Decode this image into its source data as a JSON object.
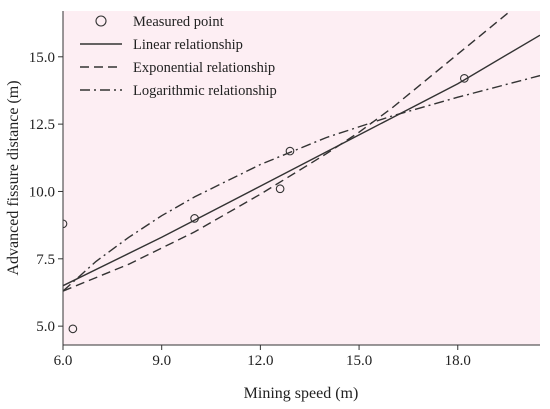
{
  "chart_data": {
    "type": "line",
    "xlabel": "Mining speed (m)",
    "ylabel": "Advanced fissure distance (m)",
    "xlim": [
      6.0,
      20.5
    ],
    "ylim": [
      4.3,
      16.7
    ],
    "xticks": [
      "6.0",
      "9.0",
      "12.0",
      "15.0",
      "18.0"
    ],
    "xtick_values": [
      6,
      9,
      12,
      15,
      18
    ],
    "yticks": [
      "5.0",
      "7.5",
      "10.0",
      "12.5",
      "15.0"
    ],
    "ytick_values": [
      5,
      7.5,
      10,
      12.5,
      15
    ],
    "grid": false,
    "legend_position": "top-left",
    "background": "#fdeef3",
    "measured_points": {
      "name": "Measured point",
      "x": [
        6.0,
        6.3,
        10.0,
        12.6,
        12.9,
        18.2
      ],
      "y": [
        8.8,
        4.9,
        9.0,
        10.1,
        11.5,
        14.2
      ]
    },
    "series": [
      {
        "name": "Linear relationship",
        "style": "solid",
        "x": [
          6.0,
          9.0,
          12.0,
          15.0,
          18.0,
          20.5
        ],
        "y": [
          6.5,
          8.3,
          10.2,
          12.1,
          14.0,
          15.8
        ]
      },
      {
        "name": "Exponential relationship",
        "style": "dashed",
        "x": [
          6.0,
          8.0,
          10.0,
          12.0,
          14.0,
          15.0,
          16.0,
          18.0,
          19.6
        ],
        "y": [
          6.3,
          7.3,
          8.5,
          9.9,
          11.4,
          12.2,
          13.1,
          15.1,
          16.7
        ]
      },
      {
        "name": "Logarithmic relationship",
        "style": "dashdot",
        "x": [
          6.0,
          7.0,
          8.0,
          9.0,
          10.0,
          12.0,
          14.0,
          16.0,
          18.0,
          20.5
        ],
        "y": [
          6.3,
          7.4,
          8.3,
          9.1,
          9.8,
          11.0,
          12.0,
          12.8,
          13.5,
          14.3
        ]
      }
    ]
  }
}
